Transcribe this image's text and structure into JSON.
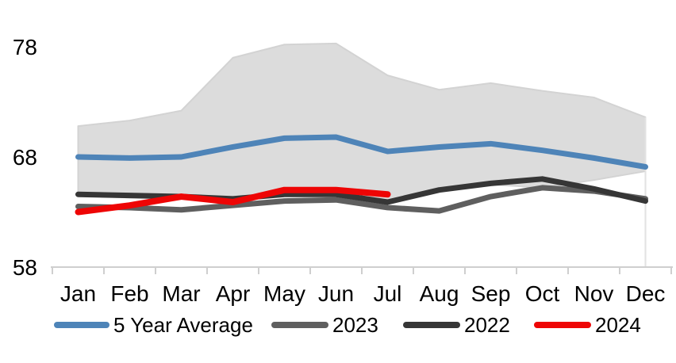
{
  "chart_data": {
    "type": "line",
    "title": "",
    "xlabel": "",
    "ylabel": "",
    "x_categories": [
      "Jan",
      "Feb",
      "Mar",
      "Apr",
      "May",
      "Jun",
      "Jul",
      "Aug",
      "Sep",
      "Oct",
      "Nov",
      "Dec"
    ],
    "y_ticks": [
      58,
      68,
      78
    ],
    "ylim": [
      58,
      80
    ],
    "grid": false,
    "legend_position": "bottom",
    "band": {
      "name": "5 Year Range",
      "top": [
        70.8,
        71.3,
        72.2,
        77.0,
        78.2,
        78.3,
        75.4,
        74.1,
        74.7,
        74.0,
        73.4,
        71.6
      ],
      "bottom": [
        64.5,
        64.3,
        64.2,
        64.0,
        64.8,
        64.8,
        63.9,
        64.9,
        65.5,
        65.2,
        65.9,
        66.7
      ],
      "fill": "#dcdcdc",
      "stroke": "#d3d3d3"
    },
    "series": [
      {
        "name": "5 Year Average",
        "color": "#4e84b8",
        "width": 7,
        "values": [
          68.0,
          67.9,
          68.0,
          68.9,
          69.7,
          69.8,
          68.5,
          68.9,
          69.2,
          68.6,
          67.9,
          67.1
        ]
      },
      {
        "name": "2023",
        "color": "#5f5f5f",
        "width": 7,
        "values": [
          63.5,
          63.4,
          63.2,
          63.6,
          64.0,
          64.1,
          63.4,
          63.1,
          64.4,
          65.2,
          64.9,
          64.2
        ]
      },
      {
        "name": "2022",
        "color": "#363636",
        "width": 7,
        "values": [
          64.6,
          64.5,
          64.4,
          64.2,
          64.6,
          64.6,
          63.9,
          65.0,
          65.6,
          66.0,
          65.1,
          64.0
        ]
      },
      {
        "name": "2024",
        "color": "#ee0505",
        "width": 8,
        "values": [
          63.0,
          63.6,
          64.4,
          63.9,
          65.0,
          65.0,
          64.6
        ]
      }
    ],
    "axis_color": "#cfcfcf",
    "label_color": "#000000"
  },
  "legend": {
    "items": [
      {
        "label": "5 Year Average",
        "color": "#4e84b8"
      },
      {
        "label": "2023",
        "color": "#5f5f5f"
      },
      {
        "label": "2022",
        "color": "#363636"
      },
      {
        "label": "2024",
        "color": "#ee0505"
      }
    ]
  }
}
